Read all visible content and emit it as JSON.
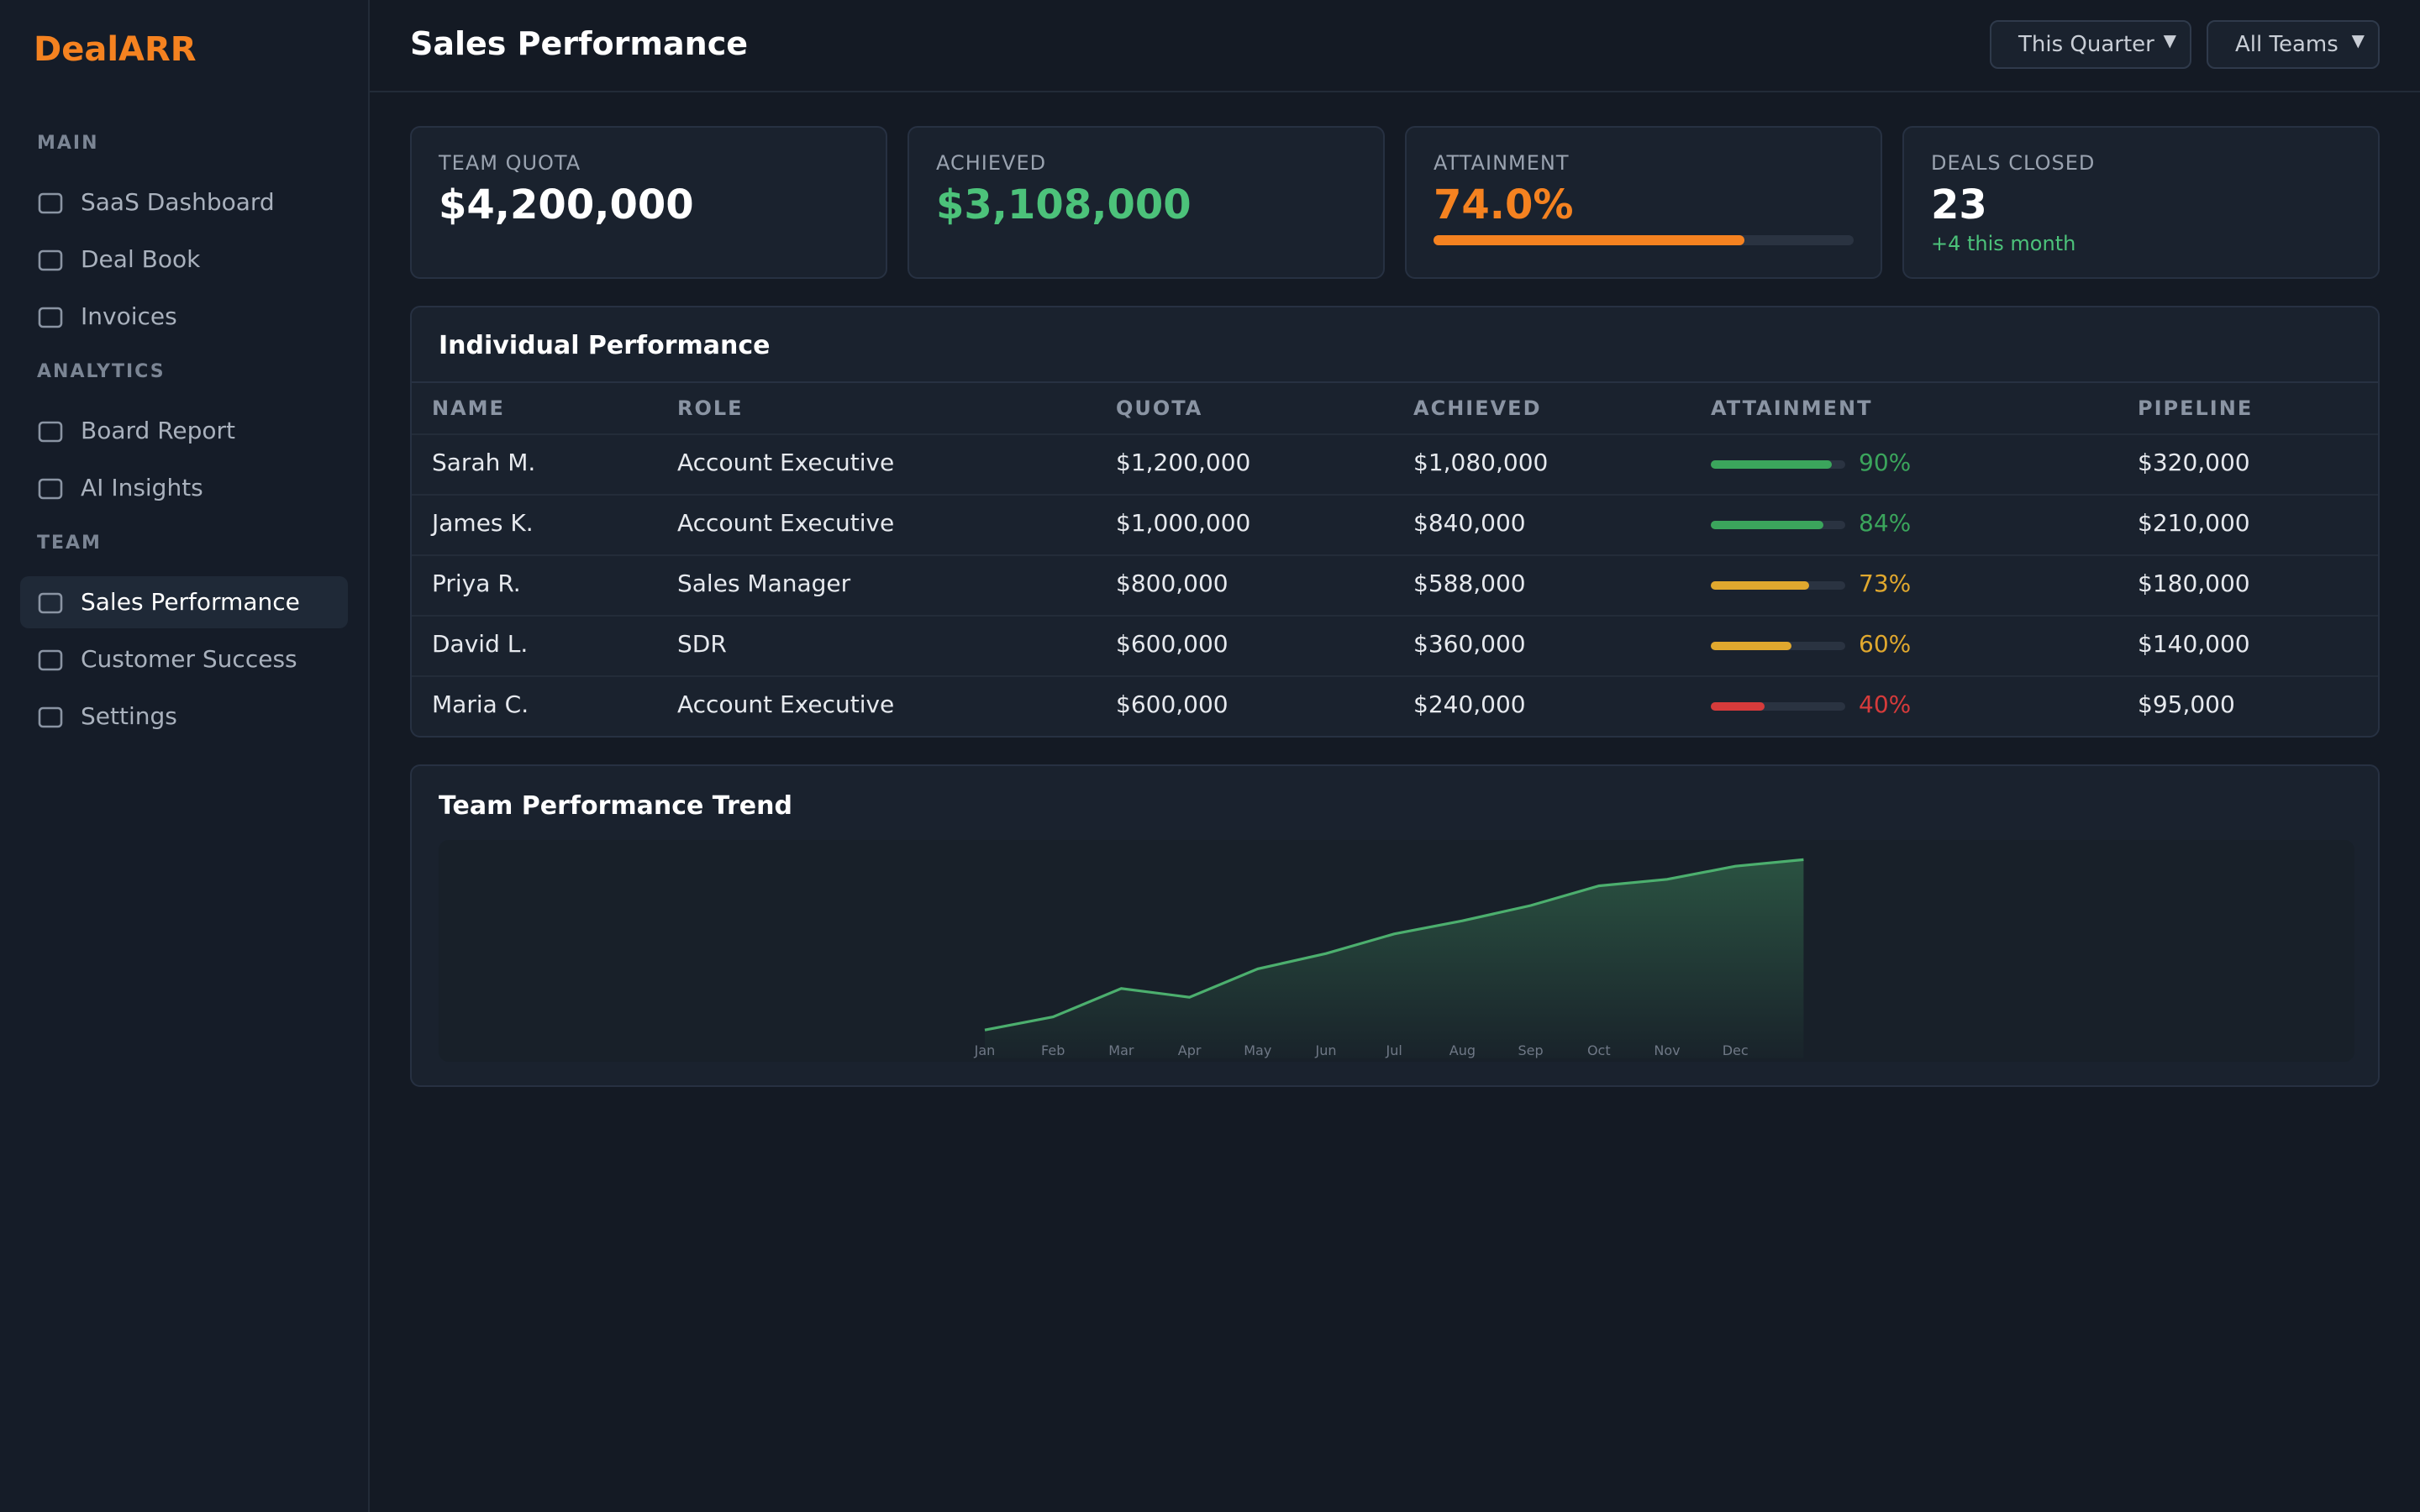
{
  "sidebar": {
    "logo": "DealARR",
    "active": "Sales Performance",
    "sections": [
      {
        "title": "MAIN",
        "items": [
          "SaaS Dashboard",
          "Deal Book",
          "Invoices"
        ]
      },
      {
        "title": "ANALYTICS",
        "items": [
          "Board Report",
          "AI Insights"
        ]
      },
      {
        "title": "TEAM",
        "items": [
          "Sales Performance",
          "Customer Success",
          "Settings"
        ]
      }
    ]
  },
  "header": {
    "title": "Sales Performance",
    "filters": [
      "This Quarter",
      "All Teams"
    ]
  },
  "kpis": [
    {
      "label": "TEAM QUOTA",
      "value": "$4,200,000",
      "color": "#ffffff"
    },
    {
      "label": "ACHIEVED",
      "value": "$3,108,000",
      "color": "#4cc27a"
    },
    {
      "label": "ATTAINMENT",
      "value": 74.0,
      "value_label": "74.0%",
      "color": "#f58220"
    },
    {
      "label": "DEALS CLOSED",
      "value": 23,
      "note": "+4 this month",
      "color": "#ffffff"
    }
  ],
  "table": {
    "title": "Individual Performance",
    "columns": [
      "NAME",
      "ROLE",
      "QUOTA",
      "ACHIEVED",
      "ATTAINMENT",
      "PIPELINE"
    ],
    "rows": [
      {
        "name": "Sarah M.",
        "role": "Account Executive",
        "quota": "$1,200,000",
        "achieved": "$1,080,000",
        "attainment": 90,
        "attainment_label": "90%",
        "color": "#3ba55c",
        "pipeline": "$320,000"
      },
      {
        "name": "James K.",
        "role": "Account Executive",
        "quota": "$1,000,000",
        "achieved": "$840,000",
        "attainment": 84,
        "attainment_label": "84%",
        "color": "#3ba55c",
        "pipeline": "$210,000"
      },
      {
        "name": "Priya R.",
        "role": "Sales Manager",
        "quota": "$800,000",
        "achieved": "$588,000",
        "attainment": 73,
        "attainment_label": "73%",
        "color": "#e0a82e",
        "pipeline": "$180,000"
      },
      {
        "name": "David L.",
        "role": "SDR",
        "quota": "$600,000",
        "achieved": "$360,000",
        "attainment": 60,
        "attainment_label": "60%",
        "color": "#e0a82e",
        "pipeline": "$140,000"
      },
      {
        "name": "Maria C.",
        "role": "Account Executive",
        "quota": "$600,000",
        "achieved": "$240,000",
        "attainment": 40,
        "attainment_label": "40%",
        "color": "#d63b3b",
        "pipeline": "$95,000"
      }
    ]
  },
  "chart_data": {
    "type": "area",
    "title": "Team Performance Trend",
    "categories": [
      "Jan",
      "Feb",
      "Mar",
      "Apr",
      "May",
      "Jun",
      "Jul",
      "Aug",
      "Sep",
      "Oct",
      "Nov",
      "Dec",
      null
    ],
    "values": [
      13,
      19,
      32,
      28,
      41,
      48,
      57,
      63,
      70,
      79,
      82,
      88,
      91
    ],
    "color": "#4caf6e",
    "ylim": [
      0,
      100
    ]
  }
}
